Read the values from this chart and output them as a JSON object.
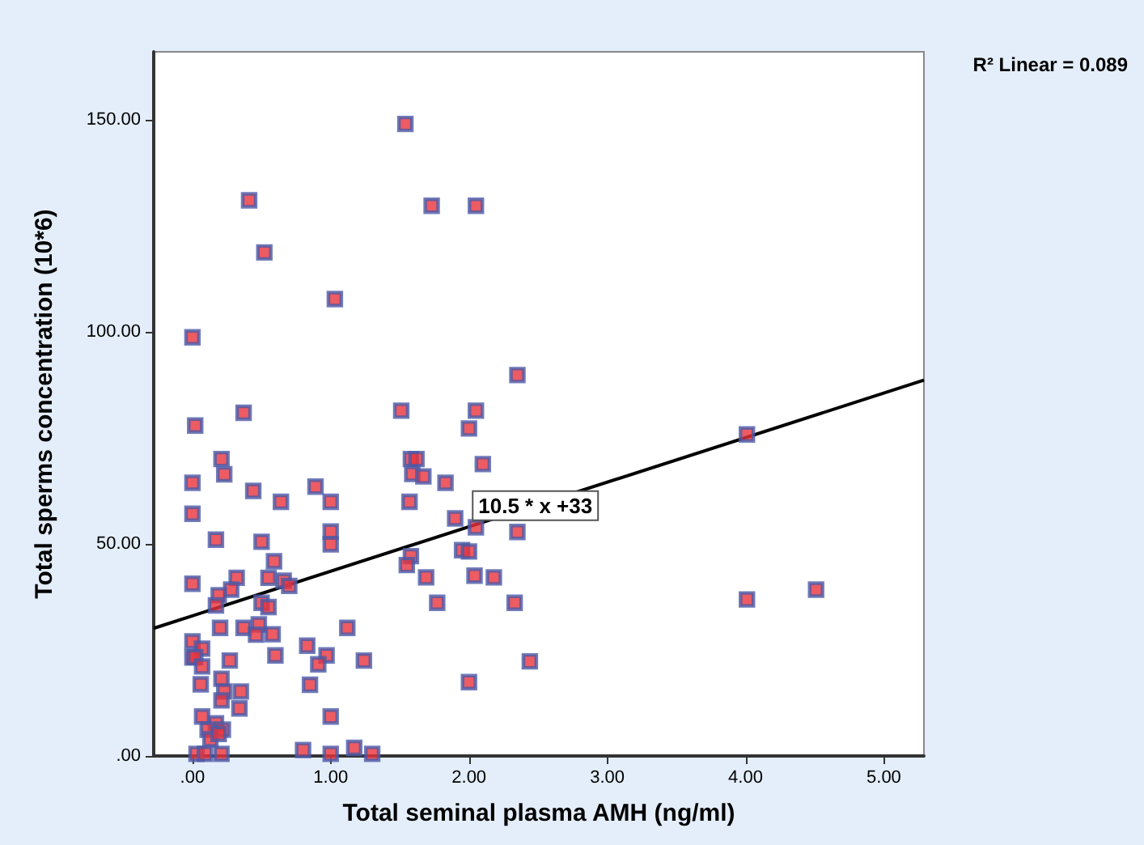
{
  "chart_data": {
    "type": "scatter",
    "xlabel": "Total seminal plasma AMH (ng/ml)",
    "ylabel": "Total sperms concentration (10*6)",
    "annotations": [
      "R² Linear = 0.089",
      {
        "text": "10.5 * x +33",
        "x": 2.48,
        "y": 59
      }
    ],
    "xlim": [
      -0.28,
      5.29
    ],
    "ylim": [
      0,
      166
    ],
    "xticks": [
      {
        "value": 0,
        "label": ".00"
      },
      {
        "value": 1,
        "label": "1.00"
      },
      {
        "value": 2,
        "label": "2.00"
      },
      {
        "value": 3,
        "label": "3.00"
      },
      {
        "value": 4,
        "label": "4.00"
      },
      {
        "value": 5,
        "label": "5.00"
      }
    ],
    "yticks": [
      {
        "value": 0,
        "label": ".00"
      },
      {
        "value": 50,
        "label": "50.00"
      },
      {
        "value": 100,
        "label": "100.00"
      },
      {
        "value": 150,
        "label": "150.00"
      }
    ],
    "grid": false,
    "marker": "square",
    "series": [
      {
        "color": "#4a5aa8",
        "x": [
          1.54,
          0.41,
          1.73,
          2.05,
          0.52,
          1.03,
          0.0,
          2.35,
          0.37,
          0.02,
          1.51,
          2.05,
          2.0,
          0.21,
          0.23,
          1.58,
          1.62,
          1.59,
          1.67,
          2.1,
          0.0,
          0.44,
          0.89,
          1.83,
          0.0,
          0.64,
          1.0,
          1.57,
          1.9,
          0.17,
          0.5,
          1.0,
          1.0,
          2.05,
          2.35,
          0.59,
          1.58,
          1.55,
          1.95,
          2.0,
          0.0,
          0.32,
          0.55,
          0.28,
          0.19,
          0.66,
          0.7,
          1.69,
          2.04,
          2.18,
          0.17,
          0.5,
          0.55,
          1.77,
          2.33,
          0.2,
          0.37,
          0.48,
          0.46,
          0.58,
          1.12,
          0.0,
          0.07,
          0.0,
          0.02,
          0.07,
          0.27,
          0.6,
          0.83,
          0.97,
          0.91,
          1.24,
          2.44,
          0.06,
          0.21,
          0.23,
          0.35,
          0.21,
          0.34,
          0.85,
          2.0,
          0.07,
          1.0,
          0.17,
          0.11,
          0.22,
          0.13,
          0.19,
          0.03,
          0.09,
          0.21,
          0.8,
          1.0,
          1.17,
          1.3,
          4.01,
          4.01,
          4.51
        ],
        "values": [
          149,
          131,
          129.7,
          129.7,
          118.7,
          107.7,
          98.7,
          89.8,
          80.9,
          77.9,
          81.4,
          81.4,
          77.2,
          70,
          66.4,
          70,
          70,
          66.5,
          65.9,
          68.8,
          64.4,
          62.5,
          63.5,
          64.4,
          57.1,
          59.9,
          59.9,
          59.9,
          56,
          51,
          50.5,
          52.9,
          49.9,
          53.9,
          52.8,
          45.9,
          47.1,
          45,
          48.5,
          48.2,
          40.6,
          42,
          42,
          39.2,
          37.9,
          41.3,
          40.1,
          42.1,
          42.5,
          42.1,
          35.5,
          36.1,
          35.1,
          36.1,
          36.1,
          30.2,
          30.2,
          31,
          28.6,
          28.7,
          30.2,
          27,
          25.3,
          23.2,
          23.3,
          21.1,
          22.5,
          23.7,
          26,
          23.7,
          21.6,
          22.5,
          22.3,
          16.9,
          18.2,
          15.2,
          15.2,
          13.1,
          11.2,
          16.8,
          17.4,
          9.3,
          9.3,
          7.7,
          6.2,
          6.2,
          3.9,
          5.2,
          0.5,
          0.5,
          0.5,
          1.4,
          0.5,
          1.9,
          0.5,
          75.8,
          36.9,
          39.2
        ]
      },
      {
        "type": "line",
        "color": "#000000",
        "marker": "none",
        "line_style": "solid",
        "x": [
          -0.28,
          5.29
        ],
        "values": [
          30.1,
          88.6
        ]
      }
    ]
  }
}
